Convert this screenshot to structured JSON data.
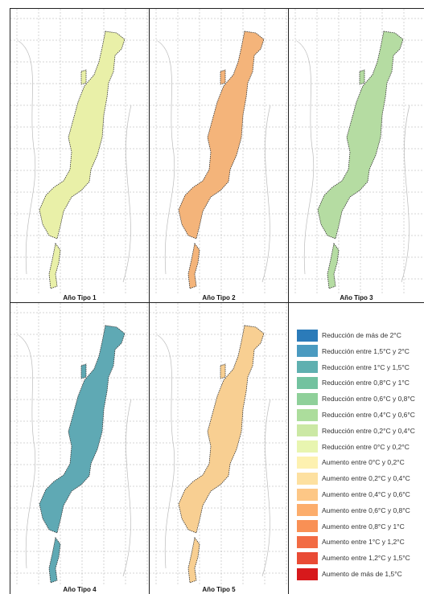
{
  "panels": [
    {
      "label": "Año Tipo 1",
      "color": "#e9f0a8"
    },
    {
      "label": "Año Tipo 2",
      "color": "#f4b47a"
    },
    {
      "label": "Año Tipo 3",
      "color": "#b5dca2"
    },
    {
      "label": "Año Tipo 4",
      "color": "#5fa9b4"
    },
    {
      "label": "Año Tipo 5",
      "color": "#f8cf92"
    }
  ],
  "legend": [
    {
      "label": "Reducción de más de 2°C",
      "color": "#2b7bb9"
    },
    {
      "label": "Reducción entre 1,5°C y 2°C",
      "color": "#4a9ac0"
    },
    {
      "label": "Reducción entre 1°C y 1,5°C",
      "color": "#5fb0b0"
    },
    {
      "label": "Reducción entre 0,8°C y 1°C",
      "color": "#72c29f"
    },
    {
      "label": "Reducción entre 0,6°C y 0,8°C",
      "color": "#8fd09a"
    },
    {
      "label": "Reducción entre 0,4°C y 0,6°C",
      "color": "#acdd9c"
    },
    {
      "label": "Reducción entre 0,2°C y 0,4°C",
      "color": "#cbe8a4"
    },
    {
      "label": "Reducción entre 0°C y 0,2°C",
      "color": "#e8f5b0"
    },
    {
      "label": "Aumento entre 0°C y 0,2°C",
      "color": "#fdf1b0"
    },
    {
      "label": "Aumento entre 0,2°C y 0,4°C",
      "color": "#fde0a0"
    },
    {
      "label": "Aumento entre 0,4°C y 0,6°C",
      "color": "#fdc786"
    },
    {
      "label": "Aumento entre 0,6°C y 0,8°C",
      "color": "#fcad6c"
    },
    {
      "label": "Aumento entre 0,8°C y 1°C",
      "color": "#f99055"
    },
    {
      "label": "Aumento entre 1°C y 1,2°C",
      "color": "#f26b43"
    },
    {
      "label": "Aumento entre 1,2°C y 1,5°C",
      "color": "#e94b35"
    },
    {
      "label": "Aumento de más de 1,5°C",
      "color": "#d7191c"
    }
  ]
}
